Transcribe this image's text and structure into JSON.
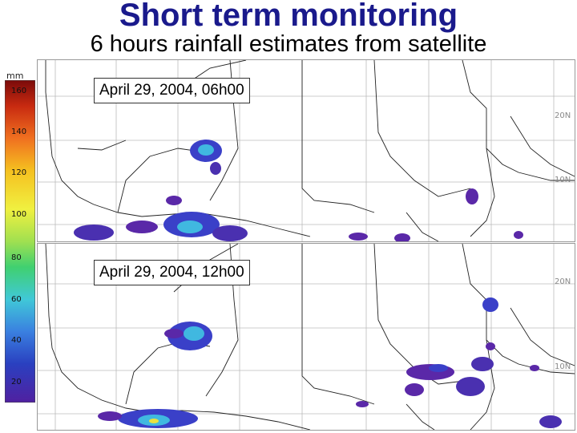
{
  "header": {
    "title": "Short term monitoring",
    "subtitle": "6 hours rainfall estimates from satellite"
  },
  "legend": {
    "unit": "mm",
    "ticks": [
      "160",
      "140",
      "120",
      "100",
      "80",
      "60",
      "40",
      "20"
    ],
    "colors": [
      "#8b1010",
      "#e65020",
      "#f0b820",
      "#e8e840",
      "#50d060",
      "#40c0d0",
      "#3050c8",
      "#6020a0"
    ]
  },
  "panels": [
    {
      "date": "April 29, 2004, 06h00",
      "lat_top": "20N",
      "lat_bottom": "10N"
    },
    {
      "date": "April 29, 2004, 12h00",
      "lat_top": "20N",
      "lat_bottom": "10N"
    }
  ]
}
